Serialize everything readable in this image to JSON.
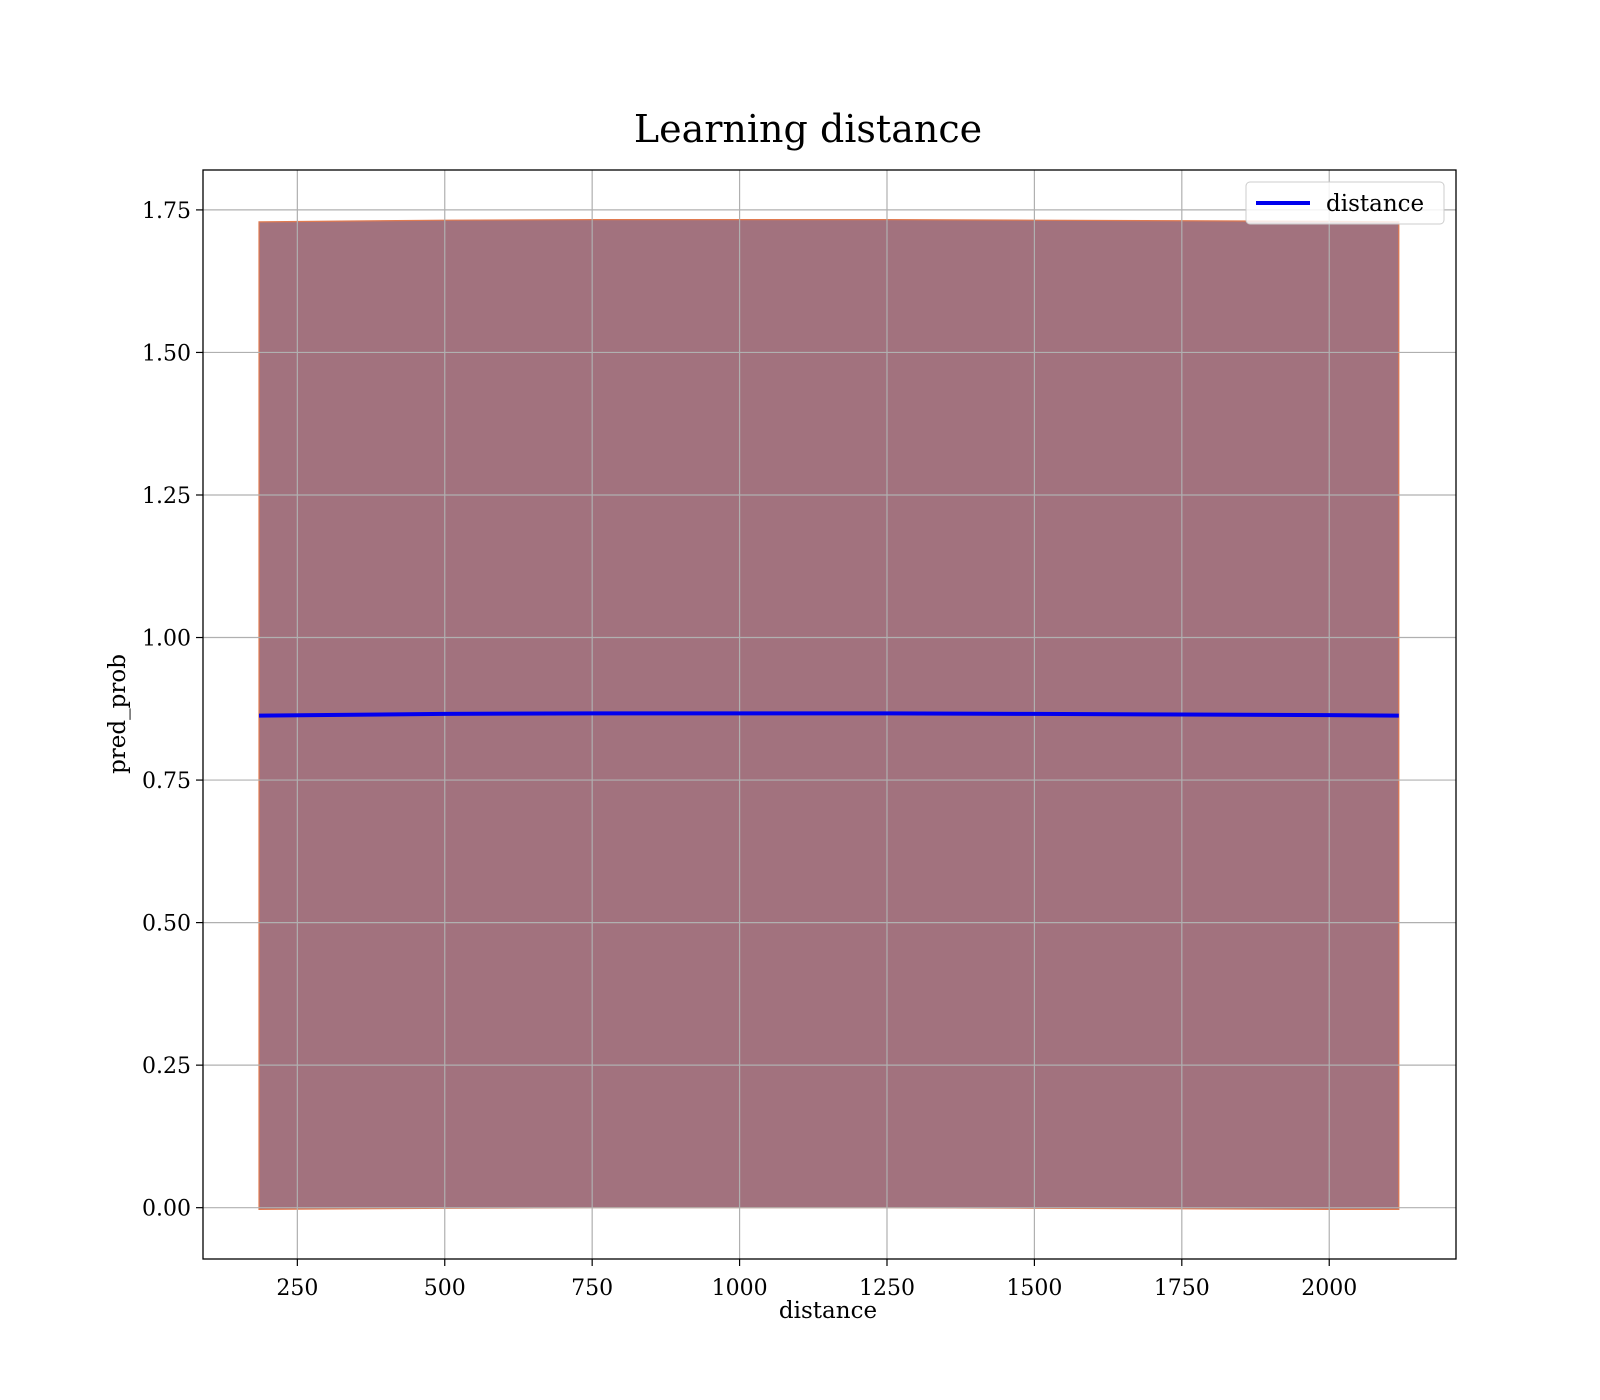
{
  "chart_data": {
    "type": "line",
    "title": "Learning distance",
    "xlabel": "distance",
    "ylabel": "pred_prob",
    "xlim": [
      90,
      2215
    ],
    "ylim": [
      -0.09,
      1.82
    ],
    "xticks": [
      250,
      500,
      750,
      1000,
      1250,
      1500,
      1750,
      2000
    ],
    "xtick_labels": [
      "250",
      "500",
      "750",
      "1000",
      "1250",
      "1500",
      "1750",
      "2000"
    ],
    "yticks": [
      0.0,
      0.25,
      0.5,
      0.75,
      1.0,
      1.25,
      1.5,
      1.75
    ],
    "ytick_labels": [
      "0.00",
      "0.25",
      "0.50",
      "0.75",
      "1.00",
      "1.25",
      "1.50",
      "1.75"
    ],
    "grid": true,
    "legend_position": "top-right",
    "series": [
      {
        "name": "distance",
        "color": "#0000ee",
        "x": [
          185,
          500,
          750,
          1000,
          1250,
          1500,
          1750,
          2000,
          2118
        ],
        "y": [
          0.863,
          0.866,
          0.867,
          0.867,
          0.867,
          0.866,
          0.865,
          0.864,
          0.863
        ]
      }
    ],
    "band": {
      "fill_color": "#8b4f5e",
      "edge_color": "#e07a50",
      "x": [
        185,
        500,
        750,
        1000,
        1250,
        1500,
        1750,
        2000,
        2118
      ],
      "lower": [
        -0.003,
        -0.001,
        0.0,
        0.0,
        0.0,
        -0.001,
        -0.002,
        -0.003,
        -0.003
      ],
      "upper": [
        1.729,
        1.732,
        1.733,
        1.733,
        1.733,
        1.732,
        1.731,
        1.73,
        1.729
      ]
    }
  }
}
